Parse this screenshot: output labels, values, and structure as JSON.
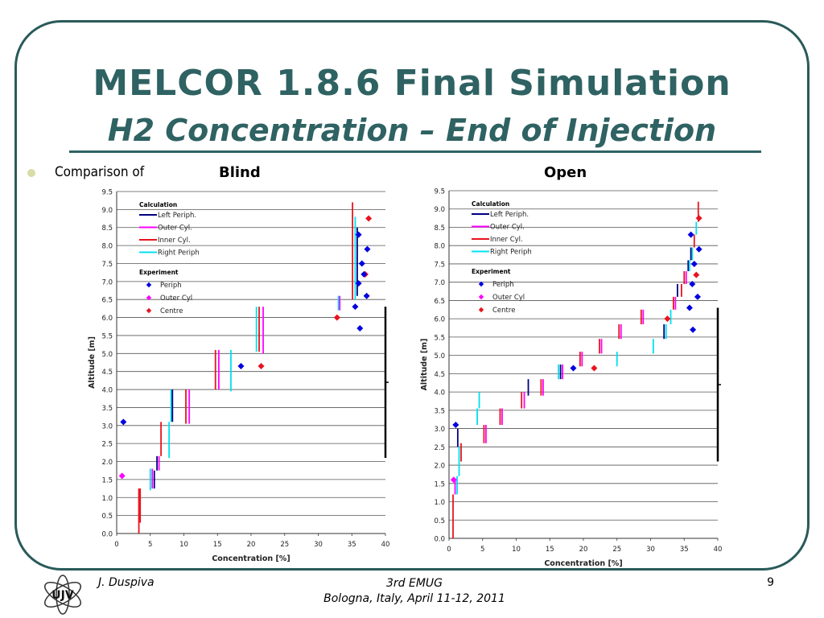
{
  "slide": {
    "title_line1": "MELCOR 1.8.6 Final Simulation",
    "title_line2": "H2 Concentration – End of Injection",
    "bullet_text": "Comparison of",
    "label_blind": "Blind",
    "label_open": "Open",
    "footer_author": "J. Duspiva",
    "footer_conf_line1": "3rd EMUG",
    "footer_conf_line2": "Bologna, Italy, April 11-12, 2011",
    "page_number": "9",
    "logo_text": "ÚJV",
    "colors": {
      "title": "#2f6262",
      "frame": "#2a5a5a",
      "bullet": "#d8dca8"
    }
  },
  "chart_data": [
    {
      "type": "scatter",
      "name": "Blind",
      "xlabel": "Concentration [%]",
      "ylabel": "Altitude [m]",
      "xlim": [
        0,
        40
      ],
      "ylim": [
        0,
        9.5
      ],
      "xticks": [
        0,
        5,
        10,
        15,
        20,
        25,
        30,
        35,
        40
      ],
      "yticks": [
        "0.0",
        "0.5",
        "1.0",
        "1.5",
        "2.0",
        "2.5",
        "3.0",
        "3.5",
        "4.0",
        "4.5",
        "5.0",
        "5.5",
        "6.0",
        "6.5",
        "7.0",
        "7.5",
        "8.0",
        "8.5",
        "9.0",
        "9.5"
      ],
      "grid": "horizontal",
      "legend_placement": "top-left",
      "legend": {
        "calc_header": "Calculation",
        "exp_header": "Experiment",
        "calc": [
          {
            "label": "Left Periph.",
            "color": "#000080"
          },
          {
            "label": "Outer Cyl.",
            "color": "#ff00ff"
          },
          {
            "label": "Inner Cyl.",
            "color": "#e8141e"
          },
          {
            "label": "Right Periph",
            "color": "#00e0f0"
          }
        ],
        "exp": [
          {
            "label": "Periph",
            "color": "#0000e0"
          },
          {
            "label": "Outer Cyl",
            "color": "#ff00ff"
          },
          {
            "label": "Centre",
            "color": "#e8141e"
          }
        ]
      },
      "calc_segments": [
        [
          3.3,
          0.0,
          1.25,
          "#e8141e"
        ],
        [
          3.5,
          0.3,
          1.25,
          "#e8141e"
        ],
        [
          5.0,
          1.2,
          1.8,
          "#00e0f0"
        ],
        [
          5.3,
          1.25,
          1.8,
          "#ff00ff"
        ],
        [
          5.6,
          1.25,
          1.75,
          "#000080"
        ],
        [
          6.0,
          1.75,
          2.15,
          "#000080"
        ],
        [
          6.3,
          1.75,
          2.15,
          "#ff00ff"
        ],
        [
          6.6,
          2.15,
          3.1,
          "#e8141e"
        ],
        [
          7.8,
          2.1,
          3.1,
          "#00e0f0"
        ],
        [
          8.1,
          3.1,
          4.0,
          "#00e0f0"
        ],
        [
          8.3,
          3.1,
          4.0,
          "#000080"
        ],
        [
          10.3,
          3.05,
          4.0,
          "#e8141e"
        ],
        [
          10.8,
          3.05,
          4.0,
          "#ff00ff"
        ],
        [
          14.7,
          4.0,
          5.1,
          "#e8141e"
        ],
        [
          15.2,
          4.0,
          5.1,
          "#ff00ff"
        ],
        [
          17.0,
          3.95,
          5.1,
          "#00e0f0"
        ],
        [
          20.8,
          5.05,
          6.3,
          "#00e0f0"
        ],
        [
          21.2,
          5.05,
          6.3,
          "#e8141e"
        ],
        [
          21.8,
          5.0,
          6.3,
          "#ff00ff"
        ],
        [
          33.0,
          6.2,
          6.6,
          "#00e0f0"
        ],
        [
          33.2,
          6.2,
          6.6,
          "#ff00ff"
        ],
        [
          35.1,
          6.5,
          9.2,
          "#e8141e"
        ],
        [
          35.5,
          6.5,
          8.8,
          "#00e0f0"
        ],
        [
          35.8,
          6.6,
          8.5,
          "#000080"
        ]
      ],
      "points": [
        [
          1.0,
          3.1,
          "#0000e0"
        ],
        [
          0.8,
          1.6,
          "#ff00ff"
        ],
        [
          18.5,
          4.65,
          "#0000e0"
        ],
        [
          21.5,
          4.65,
          "#e8141e"
        ],
        [
          32.8,
          6.0,
          "#e8141e"
        ],
        [
          36.2,
          5.7,
          "#0000e0"
        ],
        [
          35.5,
          6.3,
          "#0000e0"
        ],
        [
          37.2,
          6.6,
          "#0000e0"
        ],
        [
          36.0,
          6.95,
          "#0000e0"
        ],
        [
          37.0,
          7.2,
          "#e8141e"
        ],
        [
          36.8,
          7.2,
          "#0000e0"
        ],
        [
          36.5,
          7.5,
          "#0000e0"
        ],
        [
          37.3,
          7.9,
          "#0000e0"
        ],
        [
          36.0,
          8.3,
          "#0000e0"
        ],
        [
          37.5,
          8.75,
          "#e8141e"
        ]
      ],
      "bracket": {
        "x": 40,
        "y_from": 2.1,
        "y_to": 6.3
      }
    },
    {
      "type": "scatter",
      "name": "Open",
      "xlabel": "Concentration [%]",
      "ylabel": "Altitude [m]",
      "xlim": [
        0,
        40
      ],
      "ylim": [
        0,
        9.5
      ],
      "xticks": [
        0,
        5,
        10,
        15,
        20,
        25,
        30,
        35,
        40
      ],
      "yticks": [
        "0.0",
        "0.5",
        "1.0",
        "1.5",
        "2.0",
        "2.5",
        "3.0",
        "3.5",
        "4.0",
        "4.5",
        "5.0",
        "5.5",
        "6.0",
        "6.5",
        "7.0",
        "7.5",
        "8.0",
        "8.5",
        "9.0",
        "9.5"
      ],
      "grid": "horizontal",
      "legend_placement": "top-left",
      "legend": {
        "calc_header": "Calculation",
        "exp_header": "Experiment",
        "calc": [
          {
            "label": "Left Periph.",
            "color": "#000080"
          },
          {
            "label": "Outer Cyl.",
            "color": "#ff00ff"
          },
          {
            "label": "Inner Cyl.",
            "color": "#e8141e"
          },
          {
            "label": "Right Periph",
            "color": "#00e0f0"
          }
        ],
        "exp": [
          {
            "label": "Periph",
            "color": "#0000e0"
          },
          {
            "label": "Outer Cyl",
            "color": "#ff00ff"
          },
          {
            "label": "Centre",
            "color": "#e8141e"
          }
        ]
      },
      "calc_segments": [
        [
          0.6,
          0.0,
          1.2,
          "#e8141e"
        ],
        [
          0.9,
          1.2,
          1.6,
          "#ff00ff"
        ],
        [
          1.2,
          1.2,
          1.7,
          "#00e0f0"
        ],
        [
          1.5,
          1.7,
          2.5,
          "#00e0f0"
        ],
        [
          1.8,
          2.1,
          2.6,
          "#e8141e"
        ],
        [
          1.3,
          2.5,
          3.0,
          "#000080"
        ],
        [
          5.2,
          2.6,
          3.1,
          "#e8141e"
        ],
        [
          5.5,
          2.6,
          3.1,
          "#ff00ff"
        ],
        [
          4.2,
          3.1,
          3.55,
          "#00e0f0"
        ],
        [
          4.5,
          3.55,
          4.0,
          "#00e0f0"
        ],
        [
          7.6,
          3.1,
          3.55,
          "#e8141e"
        ],
        [
          7.9,
          3.1,
          3.55,
          "#ff00ff"
        ],
        [
          10.8,
          3.55,
          4.0,
          "#e8141e"
        ],
        [
          11.2,
          3.55,
          4.0,
          "#ff00ff"
        ],
        [
          11.8,
          3.9,
          4.35,
          "#000080"
        ],
        [
          13.7,
          3.9,
          4.35,
          "#e8141e"
        ],
        [
          14.0,
          3.9,
          4.35,
          "#ff00ff"
        ],
        [
          16.3,
          4.35,
          4.75,
          "#00e0f0"
        ],
        [
          16.6,
          4.35,
          4.75,
          "#000080"
        ],
        [
          16.9,
          4.35,
          4.75,
          "#ff00ff"
        ],
        [
          19.5,
          4.7,
          5.1,
          "#e8141e"
        ],
        [
          19.8,
          4.7,
          5.1,
          "#ff00ff"
        ],
        [
          22.4,
          5.05,
          5.45,
          "#e8141e"
        ],
        [
          22.7,
          5.05,
          5.45,
          "#ff00ff"
        ],
        [
          25.0,
          4.7,
          5.1,
          "#00e0f0"
        ],
        [
          25.3,
          5.45,
          5.85,
          "#e8141e"
        ],
        [
          25.6,
          5.45,
          5.85,
          "#ff00ff"
        ],
        [
          28.6,
          5.85,
          6.25,
          "#e8141e"
        ],
        [
          28.9,
          5.85,
          6.25,
          "#ff00ff"
        ],
        [
          30.4,
          5.05,
          5.45,
          "#00e0f0"
        ],
        [
          32.0,
          5.45,
          5.85,
          "#000080"
        ],
        [
          32.3,
          5.45,
          5.85,
          "#00e0f0"
        ],
        [
          33.0,
          5.85,
          6.25,
          "#00e0f0"
        ],
        [
          33.4,
          6.25,
          6.6,
          "#e8141e"
        ],
        [
          33.7,
          6.25,
          6.6,
          "#ff00ff"
        ],
        [
          34.0,
          6.6,
          6.95,
          "#000080"
        ],
        [
          34.6,
          6.6,
          6.95,
          "#e8141e"
        ],
        [
          35.0,
          6.95,
          7.3,
          "#e8141e"
        ],
        [
          35.3,
          6.95,
          7.3,
          "#ff00ff"
        ],
        [
          35.6,
          7.3,
          7.6,
          "#000080"
        ],
        [
          35.8,
          7.3,
          7.6,
          "#00e0f0"
        ],
        [
          36.0,
          7.6,
          7.95,
          "#000080"
        ],
        [
          36.2,
          7.6,
          7.95,
          "#00e0f0"
        ],
        [
          36.5,
          7.95,
          8.3,
          "#e8141e"
        ],
        [
          36.8,
          8.3,
          8.65,
          "#00e0f0"
        ],
        [
          37.1,
          8.65,
          9.2,
          "#e8141e"
        ]
      ],
      "points": [
        [
          1.0,
          3.1,
          "#0000e0"
        ],
        [
          0.7,
          1.6,
          "#ff00ff"
        ],
        [
          18.5,
          4.65,
          "#0000e0"
        ],
        [
          21.6,
          4.65,
          "#e8141e"
        ],
        [
          32.5,
          6.0,
          "#e8141e"
        ],
        [
          36.3,
          5.7,
          "#0000e0"
        ],
        [
          35.8,
          6.3,
          "#0000e0"
        ],
        [
          37.0,
          6.6,
          "#0000e0"
        ],
        [
          36.2,
          6.95,
          "#0000e0"
        ],
        [
          36.8,
          7.2,
          "#e8141e"
        ],
        [
          36.5,
          7.5,
          "#0000e0"
        ],
        [
          37.2,
          7.9,
          "#0000e0"
        ],
        [
          36.0,
          8.3,
          "#0000e0"
        ],
        [
          37.2,
          8.75,
          "#e8141e"
        ]
      ],
      "bracket": {
        "x": 40,
        "y_from": 2.1,
        "y_to": 6.3
      }
    }
  ]
}
